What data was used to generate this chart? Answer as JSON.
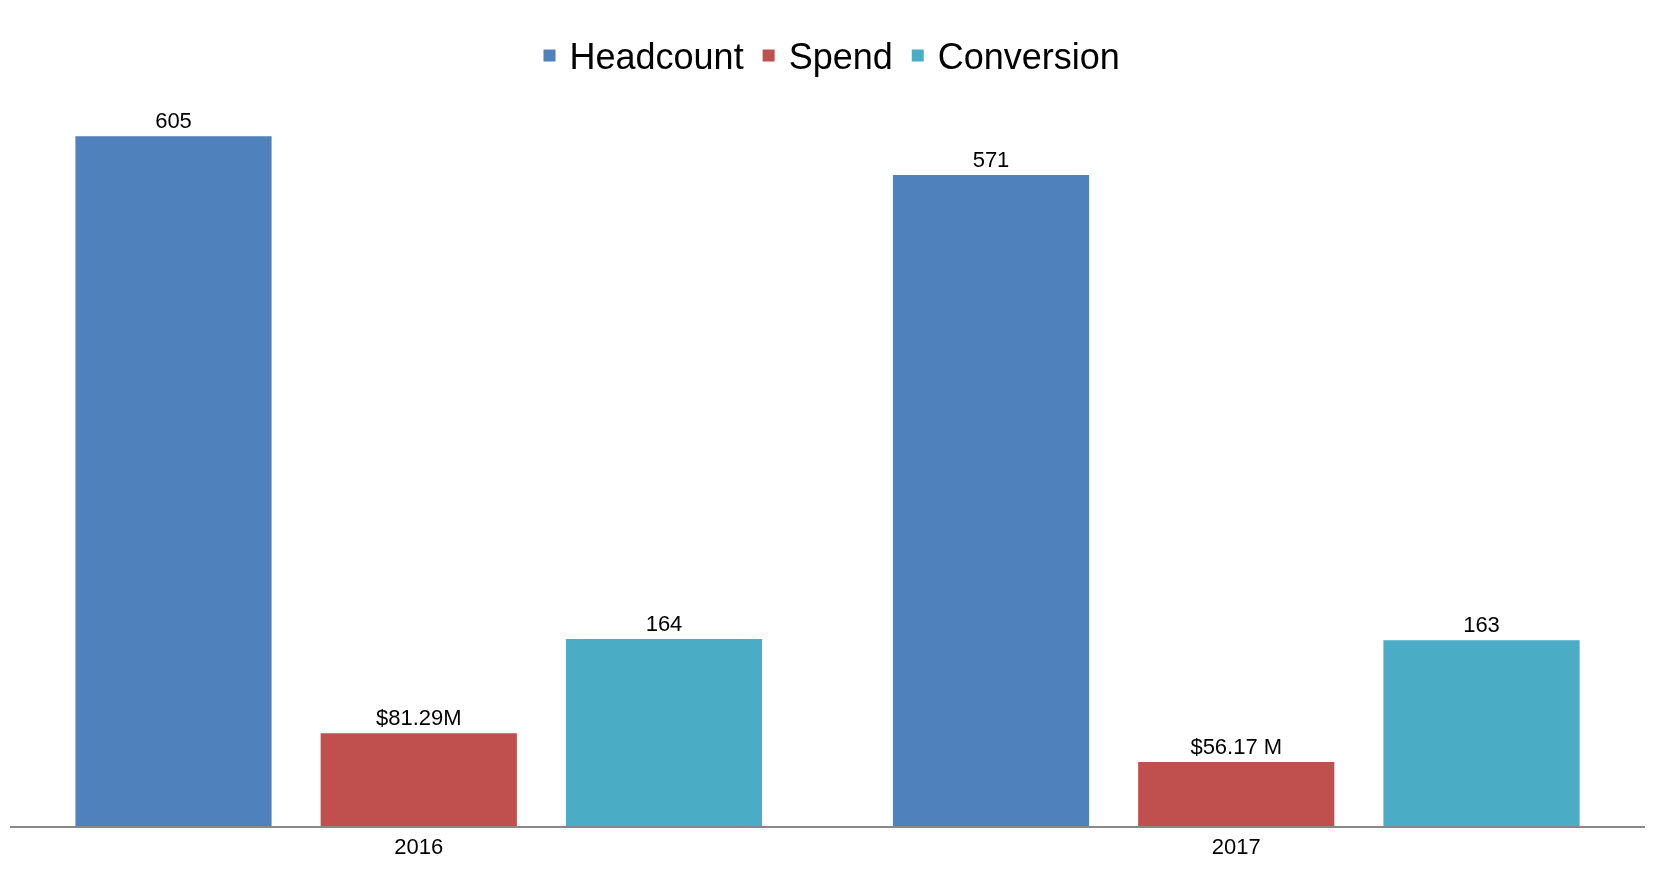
{
  "chart_data": {
    "type": "bar",
    "categories": [
      "2016",
      "2017"
    ],
    "series": [
      {
        "name": "Headcount",
        "color": "#4f81bd",
        "values": [
          605,
          571
        ],
        "value_labels": [
          "605",
          "571"
        ]
      },
      {
        "name": "Spend",
        "color": "#c0504d",
        "values": [
          81.29,
          56.17
        ],
        "value_labels": [
          "$81.29M",
          "$56.17 M"
        ]
      },
      {
        "name": "Conversion",
        "color": "#4bacc6",
        "values": [
          164,
          163
        ],
        "value_labels": [
          "164",
          "163"
        ]
      }
    ],
    "legend": "top",
    "grid": false
  }
}
